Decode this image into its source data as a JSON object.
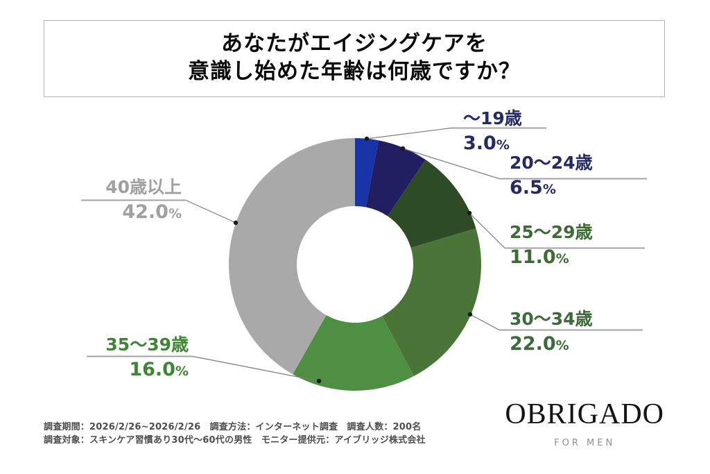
{
  "title": {
    "line1": "あなたがエイジングケアを",
    "line2": "意識し始めた年齢は何歳ですか？"
  },
  "chart_data": {
    "type": "pie",
    "subtype": "donut",
    "title": "あなたがエイジングケアを意識し始めた年齢は何歳ですか？",
    "categories": [
      "～19歳",
      "20～24歳",
      "25～29歳",
      "30～34歳",
      "35～39歳",
      "40歳以上"
    ],
    "values": [
      3.0,
      6.5,
      11.0,
      22.0,
      16.0,
      42.0
    ],
    "unit": "%",
    "start_angle_deg": 0,
    "clockwise": true,
    "legend": "none",
    "label_style": "callout-leader-lines",
    "colors": [
      "#1733a6",
      "#221e62",
      "#2d4c26",
      "#4a7438",
      "#4e8f43",
      "#a9a9a9"
    ],
    "label_colors": [
      "#262a63",
      "#262a63",
      "#3d6b35",
      "#3c6b39",
      "#3f8538",
      "#a0a0a0"
    ],
    "labels": [
      {
        "name": "～19歳",
        "pct": "3.0"
      },
      {
        "name": "20～24歳",
        "pct": "6.5"
      },
      {
        "name": "25～29歳",
        "pct": "11.0"
      },
      {
        "name": "30～34歳",
        "pct": "22.0"
      },
      {
        "name": "35～39歳",
        "pct": "16.0"
      },
      {
        "name": "40歳以上",
        "pct": "42.0"
      }
    ],
    "percent_sign": "%"
  },
  "footer": {
    "line1": "調査期間：2026/2/26~2026/2/26　調査方法：インターネット調査　調査人数：200名",
    "line2": "調査対象：スキンケア習慣あり30代～60代の男性　モニター提供元：アイブリッジ株式会社"
  },
  "logo": {
    "name": "OBRIGADO",
    "tagline": "FOR MEN"
  }
}
